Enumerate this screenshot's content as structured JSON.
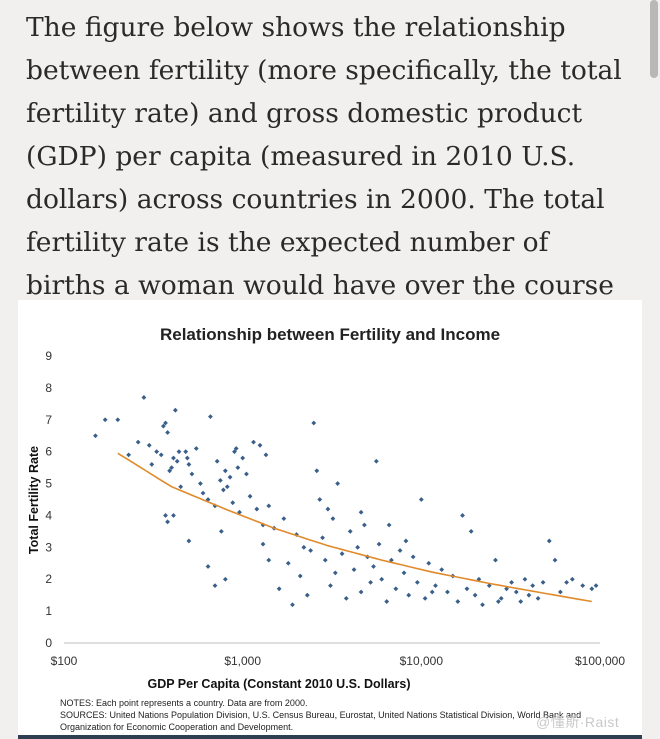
{
  "intro_text": "The figure below shows the relationship between fertility (more specifically, the total fertility rate) and gross domestic product (GDP) per capita (measured in 2010 U.S. dollars) across countries in 2000. The total fertility rate is the expected number of births a woman would have over the course of her life.",
  "watermark": "@懂斯·Raist",
  "chart_data": {
    "type": "scatter",
    "title": "Relationship between Fertility and Income",
    "xlabel": "GDP Per Capita (Constant 2010 U.S. Dollars)",
    "ylabel": "Total Fertility Rate",
    "xscale": "log",
    "xlim": [
      100,
      100000
    ],
    "ylim": [
      0,
      9
    ],
    "x_ticks": [
      100,
      1000,
      10000,
      100000
    ],
    "x_tick_labels": [
      "$100",
      "$1,000",
      "$10,000",
      "$100,000"
    ],
    "y_ticks": [
      0,
      1,
      2,
      3,
      4,
      5,
      6,
      7,
      8,
      9
    ],
    "grid": false,
    "points_color": "#3a5f8a",
    "trend_color": "#e08a2a",
    "trend_line": [
      [
        200,
        5.95
      ],
      [
        400,
        4.9
      ],
      [
        800,
        4.2
      ],
      [
        1500,
        3.6
      ],
      [
        3000,
        3.05
      ],
      [
        6000,
        2.6
      ],
      [
        12000,
        2.2
      ],
      [
        25000,
        1.85
      ],
      [
        50000,
        1.55
      ],
      [
        90000,
        1.3
      ]
    ],
    "points": [
      [
        150,
        6.5
      ],
      [
        170,
        7.0
      ],
      [
        200,
        7.0
      ],
      [
        230,
        5.9
      ],
      [
        260,
        6.3
      ],
      [
        280,
        7.7
      ],
      [
        300,
        6.2
      ],
      [
        310,
        5.6
      ],
      [
        330,
        6.0
      ],
      [
        350,
        5.9
      ],
      [
        360,
        6.8
      ],
      [
        370,
        6.9
      ],
      [
        380,
        6.6
      ],
      [
        390,
        5.4
      ],
      [
        400,
        5.5
      ],
      [
        410,
        5.8
      ],
      [
        420,
        7.3
      ],
      [
        430,
        5.7
      ],
      [
        440,
        6.0
      ],
      [
        450,
        4.9
      ],
      [
        480,
        6.0
      ],
      [
        490,
        5.8
      ],
      [
        500,
        5.6
      ],
      [
        520,
        5.3
      ],
      [
        550,
        6.1
      ],
      [
        580,
        5.0
      ],
      [
        600,
        4.7
      ],
      [
        640,
        4.5
      ],
      [
        660,
        7.1
      ],
      [
        700,
        4.3
      ],
      [
        720,
        5.7
      ],
      [
        750,
        5.1
      ],
      [
        780,
        4.8
      ],
      [
        800,
        5.4
      ],
      [
        820,
        4.9
      ],
      [
        850,
        5.2
      ],
      [
        880,
        4.4
      ],
      [
        900,
        6.0
      ],
      [
        920,
        6.1
      ],
      [
        940,
        5.5
      ],
      [
        960,
        4.1
      ],
      [
        1000,
        5.8
      ],
      [
        1050,
        5.3
      ],
      [
        1100,
        4.6
      ],
      [
        1150,
        6.3
      ],
      [
        1200,
        4.2
      ],
      [
        1250,
        6.2
      ],
      [
        1300,
        3.7
      ],
      [
        1350,
        5.9
      ],
      [
        1400,
        4.3
      ],
      [
        370,
        4.0
      ],
      [
        380,
        3.8
      ],
      [
        410,
        4.0
      ],
      [
        500,
        3.2
      ],
      [
        640,
        2.4
      ],
      [
        700,
        1.8
      ],
      [
        760,
        3.5
      ],
      [
        800,
        2.0
      ],
      [
        1300,
        3.1
      ],
      [
        1400,
        2.6
      ],
      [
        1500,
        3.6
      ],
      [
        1600,
        1.7
      ],
      [
        1700,
        3.9
      ],
      [
        1800,
        2.5
      ],
      [
        1900,
        1.2
      ],
      [
        2000,
        3.4
      ],
      [
        2100,
        2.1
      ],
      [
        2200,
        3.0
      ],
      [
        2300,
        1.5
      ],
      [
        2400,
        2.9
      ],
      [
        2500,
        6.9
      ],
      [
        2600,
        5.4
      ],
      [
        2700,
        4.5
      ],
      [
        2800,
        3.3
      ],
      [
        2900,
        2.6
      ],
      [
        3000,
        4.2
      ],
      [
        3100,
        1.8
      ],
      [
        3200,
        3.9
      ],
      [
        3300,
        2.2
      ],
      [
        3400,
        5.0
      ],
      [
        3600,
        2.8
      ],
      [
        3800,
        1.4
      ],
      [
        4000,
        3.5
      ],
      [
        4200,
        2.3
      ],
      [
        4400,
        3.0
      ],
      [
        4600,
        1.6
      ],
      [
        4800,
        3.7
      ],
      [
        5000,
        2.7
      ],
      [
        5200,
        1.9
      ],
      [
        5400,
        2.4
      ],
      [
        5600,
        5.7
      ],
      [
        5800,
        3.1
      ],
      [
        6000,
        2.0
      ],
      [
        6400,
        1.3
      ],
      [
        6800,
        2.6
      ],
      [
        7200,
        1.7
      ],
      [
        7600,
        2.9
      ],
      [
        8000,
        2.2
      ],
      [
        8500,
        1.5
      ],
      [
        9000,
        2.7
      ],
      [
        9500,
        1.9
      ],
      [
        10000,
        4.5
      ],
      [
        10500,
        1.4
      ],
      [
        11000,
        2.5
      ],
      [
        12000,
        1.8
      ],
      [
        13000,
        2.3
      ],
      [
        14000,
        1.6
      ],
      [
        15000,
        2.1
      ],
      [
        16000,
        1.3
      ],
      [
        17000,
        4.0
      ],
      [
        18000,
        1.7
      ],
      [
        19000,
        3.5
      ],
      [
        20000,
        1.5
      ],
      [
        21000,
        2.0
      ],
      [
        22000,
        1.2
      ],
      [
        24000,
        1.8
      ],
      [
        26000,
        2.6
      ],
      [
        28000,
        1.4
      ],
      [
        30000,
        1.7
      ],
      [
        32000,
        1.9
      ],
      [
        34000,
        1.6
      ],
      [
        36000,
        1.3
      ],
      [
        38000,
        2.0
      ],
      [
        40000,
        1.5
      ],
      [
        42000,
        1.8
      ],
      [
        45000,
        1.4
      ],
      [
        48000,
        1.9
      ],
      [
        52000,
        3.2
      ],
      [
        56000,
        2.6
      ],
      [
        60000,
        1.6
      ],
      [
        65000,
        1.9
      ],
      [
        70000,
        2.0
      ],
      [
        80000,
        1.8
      ],
      [
        90000,
        1.7
      ],
      [
        95000,
        1.8
      ],
      [
        8200,
        3.2
      ],
      [
        6600,
        3.7
      ],
      [
        4600,
        4.1
      ],
      [
        11500,
        1.6
      ],
      [
        27000,
        1.3
      ]
    ]
  },
  "notes": {
    "line1": "NOTES: Each point represents a country. Data are from 2000.",
    "line2": "SOURCES: United Nations Population Division, U.S. Census Bureau, Eurostat, United Nations Statistical Division, World Bank and",
    "line3": "Organization for Economic Cooperation and Development."
  }
}
